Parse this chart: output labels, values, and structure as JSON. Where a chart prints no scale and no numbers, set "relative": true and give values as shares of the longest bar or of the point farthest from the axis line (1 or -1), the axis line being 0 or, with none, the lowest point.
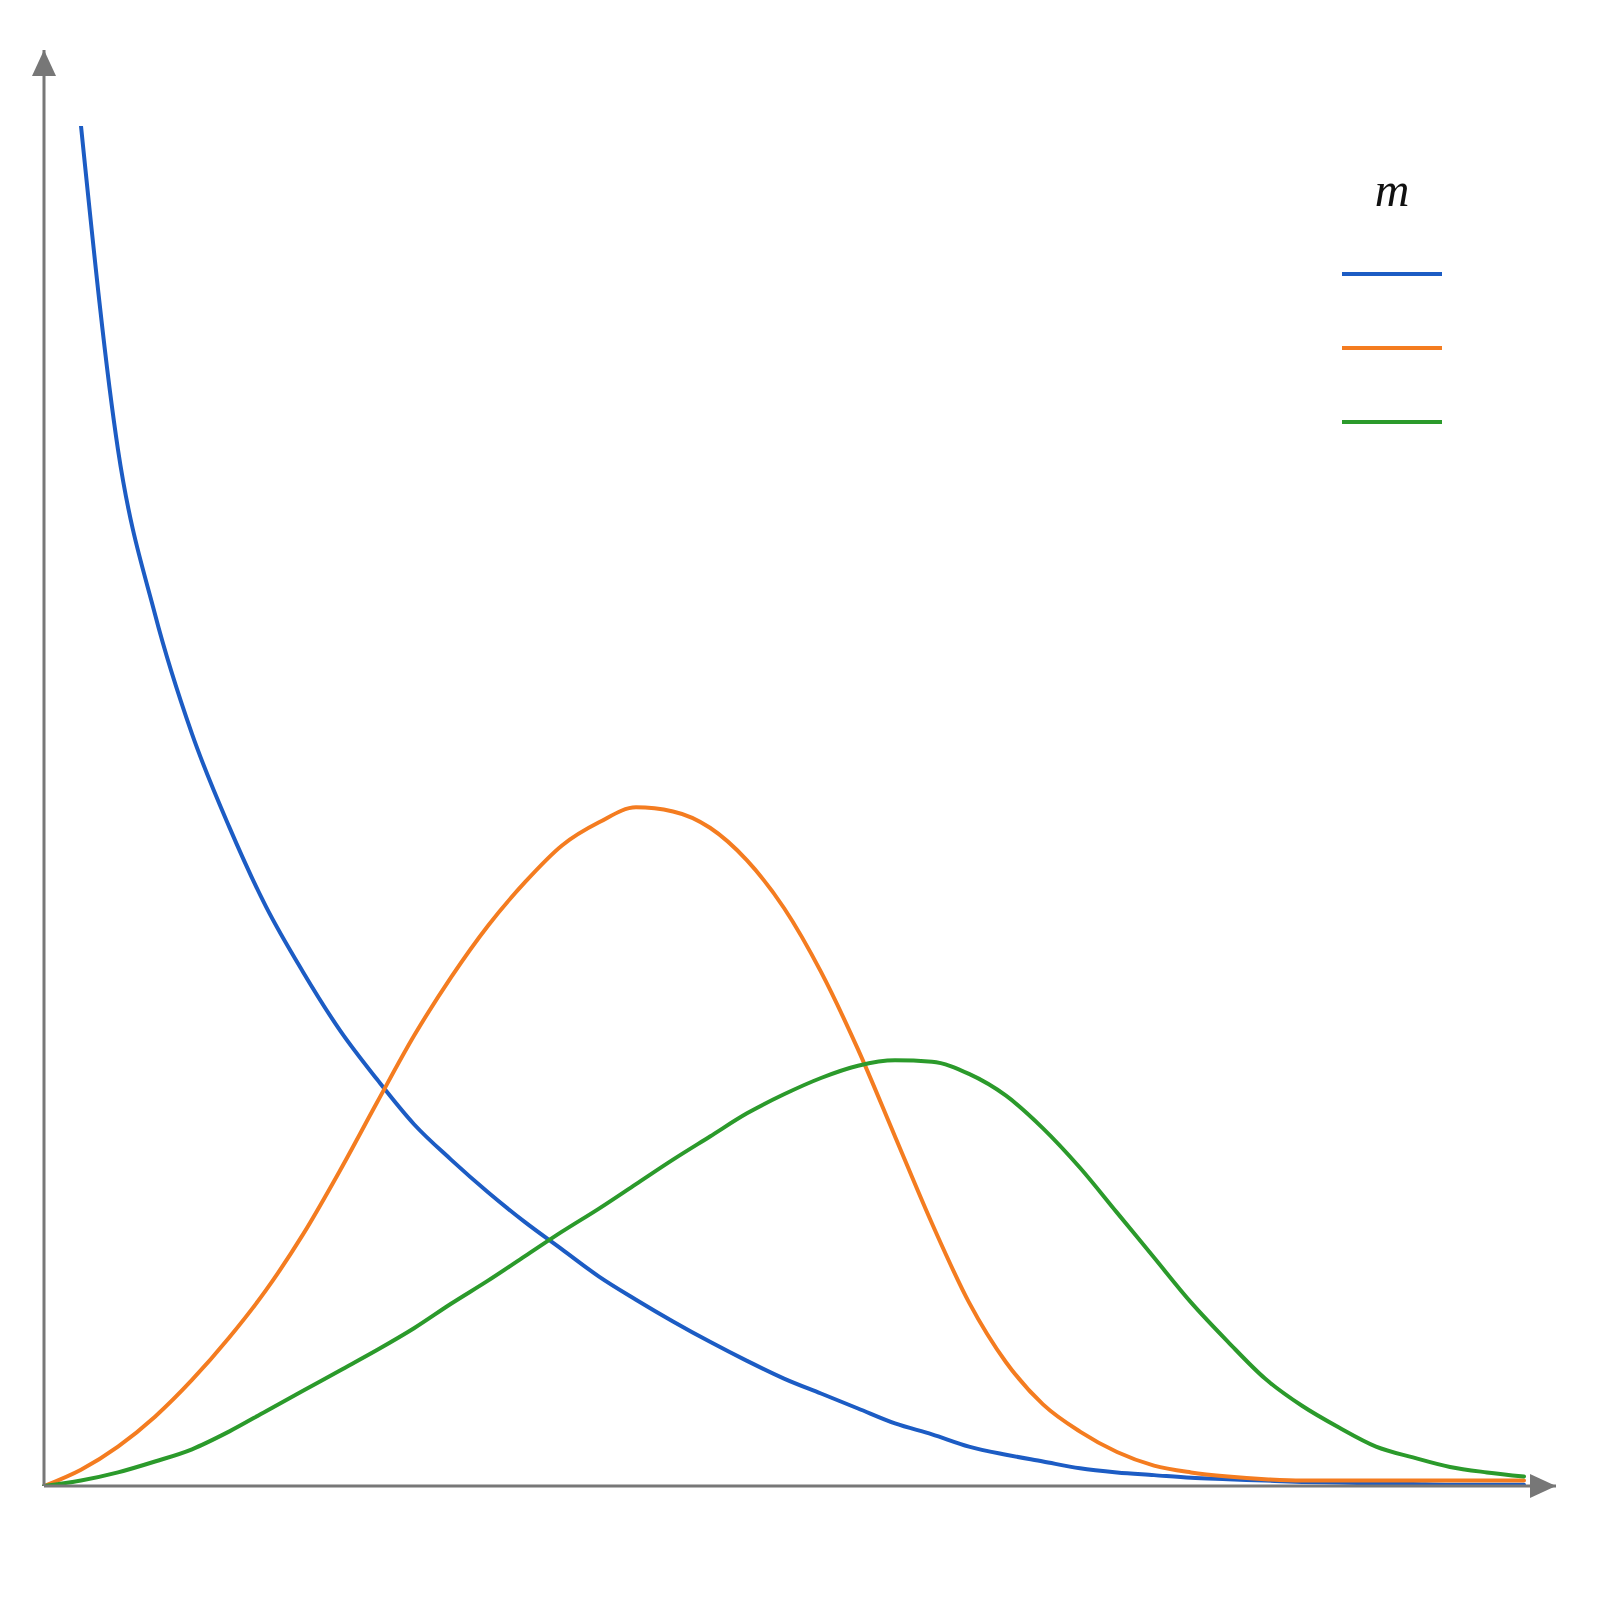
{
  "chart_data": {
    "type": "line",
    "relative": true,
    "legend_title": "m",
    "marker": "none",
    "categories": [
      null,
      null,
      null,
      null,
      null,
      null,
      null,
      null,
      null,
      null,
      null,
      null,
      null,
      null,
      null,
      null,
      null,
      null,
      null,
      null,
      null,
      null,
      null,
      null,
      null,
      null,
      null,
      null,
      null,
      null,
      null,
      null,
      null,
      null,
      null,
      null,
      null,
      null,
      null,
      null,
      null
    ],
    "series": [
      {
        "color": "#1c5cc4",
        "values": [
          null,
          1.0,
          0.762,
          0.641,
          0.553,
          0.485,
          0.426,
          0.378,
          0.335,
          0.299,
          0.266,
          0.24,
          0.216,
          0.194,
          0.174,
          0.154,
          0.137,
          0.121,
          0.106,
          0.092,
          0.079,
          0.068,
          0.057,
          0.046,
          0.038,
          0.029,
          0.023,
          0.018,
          0.013,
          0.01,
          0.008,
          0.006,
          0.005,
          0.004,
          0.003,
          0.0025,
          0.002,
          0.0015,
          0.001,
          0.001,
          0.001
        ]
      },
      {
        "color": "#f47c20",
        "values": [
          0,
          0.012,
          0.029,
          0.051,
          0.078,
          0.109,
          0.144,
          0.185,
          0.232,
          0.282,
          0.331,
          0.374,
          0.412,
          0.444,
          0.471,
          0.488,
          0.499,
          0.496,
          0.484,
          0.46,
          0.425,
          0.378,
          0.321,
          0.257,
          0.193,
          0.135,
          0.091,
          0.06,
          0.04,
          0.025,
          0.015,
          0.01,
          0.007,
          0.005,
          0.004,
          0.004,
          0.004,
          0.004,
          0.004,
          0.004,
          0.004
        ]
      },
      {
        "color": "#2b9a2b",
        "values": [
          0,
          0.004,
          0.01,
          0.018,
          0.027,
          0.04,
          0.055,
          0.07,
          0.085,
          0.1,
          0.116,
          0.134,
          0.151,
          0.169,
          0.187,
          0.204,
          0.222,
          0.24,
          0.257,
          0.274,
          0.288,
          0.3,
          0.309,
          0.313,
          0.312,
          0.303,
          0.287,
          0.263,
          0.234,
          0.201,
          0.168,
          0.135,
          0.106,
          0.079,
          0.059,
          0.043,
          0.029,
          0.021,
          0.014,
          0.01,
          0.007
        ]
      }
    ]
  }
}
